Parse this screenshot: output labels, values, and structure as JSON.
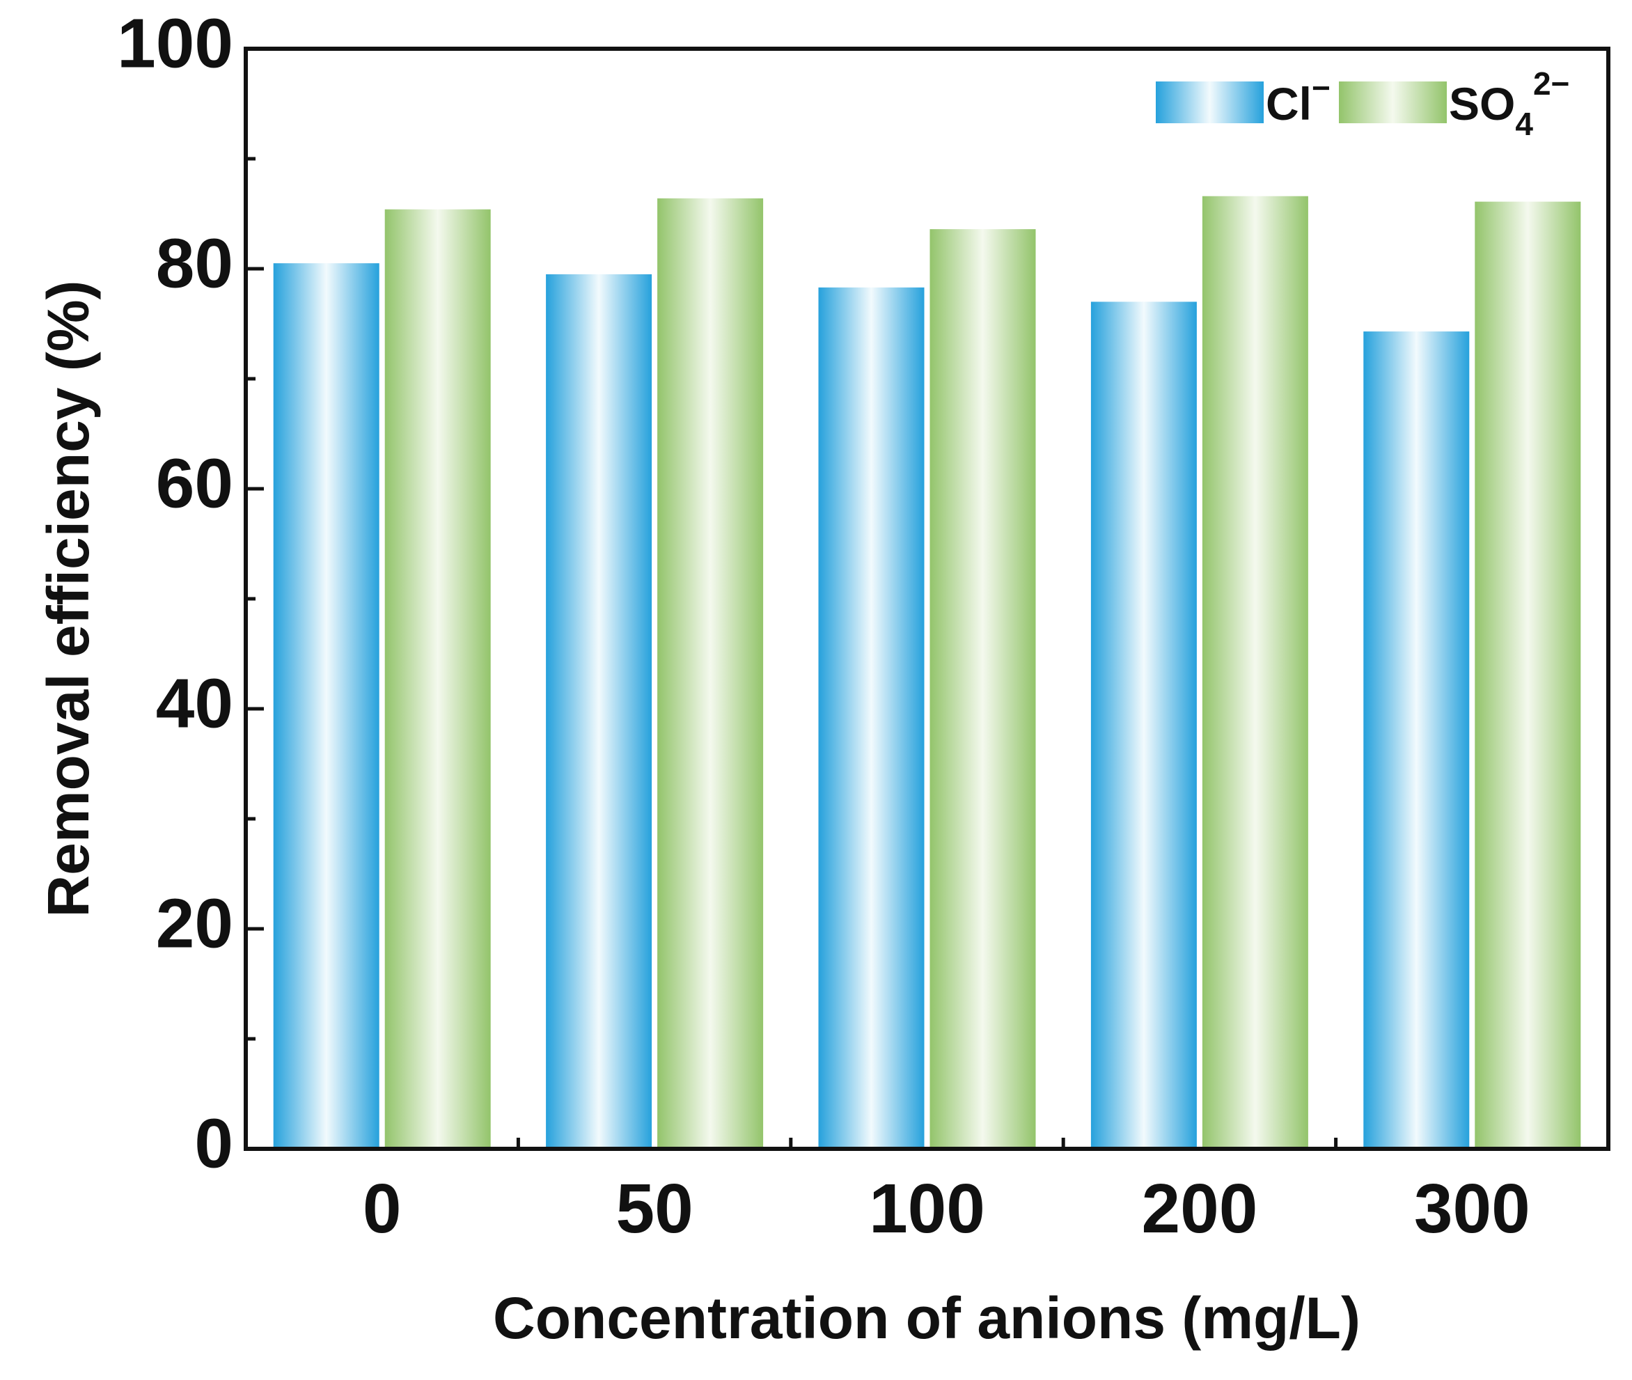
{
  "chart_data": {
    "type": "bar",
    "title": "",
    "xlabel": "Concentration of anions (mg/L)",
    "ylabel": "Removal efficiency (%)",
    "categories": [
      "0",
      "50",
      "100",
      "200",
      "300"
    ],
    "ylim": [
      0,
      100
    ],
    "yticks": [
      "0",
      "20",
      "40",
      "60",
      "80",
      "100"
    ],
    "legend_position": "top-right",
    "series": [
      {
        "name": "Cl⁻",
        "legend": {
          "base": "Cl",
          "sup": "−"
        },
        "values": [
          80.5,
          79.5,
          78.3,
          77.0,
          74.3
        ],
        "color": "#2aa3dc"
      },
      {
        "name": "SO₄²⁻",
        "legend": {
          "base": "SO",
          "sub": "4",
          "sup": "2−"
        },
        "values": [
          85.4,
          86.4,
          83.6,
          86.6,
          86.1
        ],
        "color": "#94c46a"
      }
    ]
  }
}
